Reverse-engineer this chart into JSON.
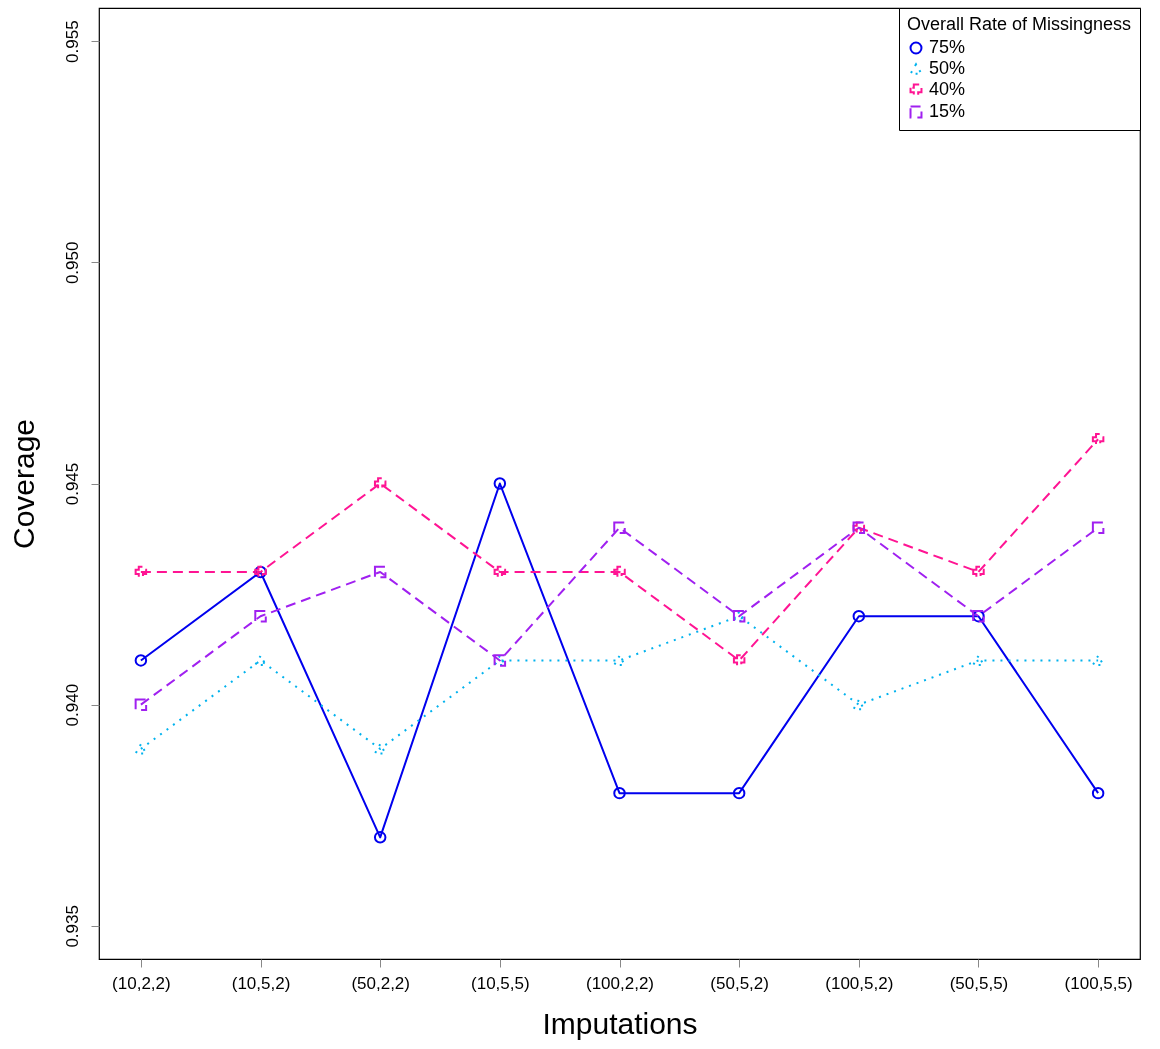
{
  "chart_data": {
    "type": "line",
    "xlabel": "Imputations",
    "ylabel": "Coverage",
    "legend_title": "Overall Rate of Missingness",
    "legend": "top right",
    "grid": false,
    "categories": [
      "(10,2,2)",
      "(10,5,2)",
      "(50,2,2)",
      "(10,5,5)",
      "(100,2,2)",
      "(50,5,2)",
      "(100,5,2)",
      "(50,5,5)",
      "(100,5,5)"
    ],
    "ylim": [
      0.93425,
      0.95575
    ],
    "yticks": [
      {
        "value": 0.935,
        "label": "0.935"
      },
      {
        "value": 0.94,
        "label": "0.940"
      },
      {
        "value": 0.945,
        "label": "0.945"
      },
      {
        "value": 0.95,
        "label": "0.950"
      },
      {
        "value": 0.955,
        "label": "0.955"
      }
    ],
    "series": [
      {
        "name": "75%",
        "color": "#0000ee",
        "marker": "circle",
        "line_style": "solid",
        "values": [
          0.941,
          0.943,
          0.937,
          0.945,
          0.938,
          0.938,
          0.942,
          0.942,
          0.938
        ]
      },
      {
        "name": "50%",
        "color": "#00b2ee",
        "marker": "triangle",
        "line_style": "dotted",
        "values": [
          0.939,
          0.941,
          0.939,
          0.941,
          0.941,
          0.942,
          0.94,
          0.941,
          0.941
        ]
      },
      {
        "name": "40%",
        "color": "#ff1493",
        "marker": "cross",
        "line_style": "dashed",
        "values": [
          0.943,
          0.943,
          0.945,
          0.943,
          0.943,
          0.941,
          0.944,
          0.943,
          0.946
        ]
      },
      {
        "name": "15%",
        "color": "#a020f0",
        "marker": "square",
        "line_style": "dashed",
        "values": [
          0.94,
          0.942,
          0.943,
          0.941,
          0.944,
          0.942,
          0.944,
          0.942,
          0.944
        ]
      }
    ]
  }
}
